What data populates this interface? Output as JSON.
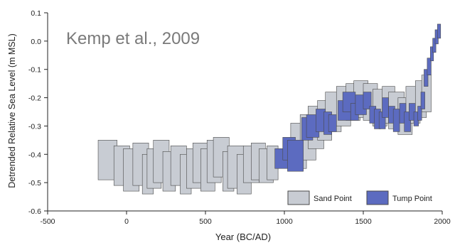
{
  "chart_data": {
    "type": "scatter",
    "title": "",
    "annotation": "Kemp et al., 2009",
    "xlabel": "Year (BC/AD)",
    "ylabel": "Detrended Relative Sea Level (m MSL)",
    "xlim": [
      -500,
      2000
    ],
    "ylim": [
      -0.6,
      0.1
    ],
    "x_ticks": [
      -500,
      0,
      500,
      1000,
      1500,
      2000
    ],
    "y_ticks": [
      0.1,
      0.0,
      -0.1,
      -0.2,
      -0.3,
      -0.4,
      -0.5,
      -0.6
    ],
    "y_tick_labels": [
      "0.1",
      "0.0",
      "-0.1",
      "-0.2",
      "-0.3",
      "-0.4",
      "-0.5",
      "-0.6"
    ],
    "grid": false,
    "legend_position": "bottom-right",
    "colors": {
      "sand": "#c8ccd3",
      "tump": "#5c6bc0",
      "edge": "#4a4a4a"
    },
    "series": [
      {
        "name": "Sand Point",
        "boxes": [
          {
            "x1": -180,
            "x2": -60,
            "y1": -0.35,
            "y2": -0.49
          },
          {
            "x1": -80,
            "x2": 20,
            "y1": -0.37,
            "y2": -0.51
          },
          {
            "x1": -20,
            "x2": 80,
            "y1": -0.38,
            "y2": -0.53
          },
          {
            "x1": 40,
            "x2": 140,
            "y1": -0.36,
            "y2": -0.51
          },
          {
            "x1": 100,
            "x2": 170,
            "y1": -0.4,
            "y2": -0.54
          },
          {
            "x1": 130,
            "x2": 220,
            "y1": -0.38,
            "y2": -0.52
          },
          {
            "x1": 170,
            "x2": 270,
            "y1": -0.35,
            "y2": -0.5
          },
          {
            "x1": 230,
            "x2": 310,
            "y1": -0.39,
            "y2": -0.53
          },
          {
            "x1": 280,
            "x2": 380,
            "y1": -0.37,
            "y2": -0.51
          },
          {
            "x1": 340,
            "x2": 410,
            "y1": -0.4,
            "y2": -0.54
          },
          {
            "x1": 380,
            "x2": 470,
            "y1": -0.38,
            "y2": -0.52
          },
          {
            "x1": 420,
            "x2": 520,
            "y1": -0.36,
            "y2": -0.5
          },
          {
            "x1": 470,
            "x2": 560,
            "y1": -0.38,
            "y2": -0.53
          },
          {
            "x1": 510,
            "x2": 600,
            "y1": -0.35,
            "y2": -0.5
          },
          {
            "x1": 550,
            "x2": 650,
            "y1": -0.34,
            "y2": -0.48
          },
          {
            "x1": 610,
            "x2": 680,
            "y1": -0.39,
            "y2": -0.53
          },
          {
            "x1": 640,
            "x2": 740,
            "y1": -0.37,
            "y2": -0.52
          },
          {
            "x1": 700,
            "x2": 790,
            "y1": -0.4,
            "y2": -0.54
          },
          {
            "x1": 740,
            "x2": 840,
            "y1": -0.37,
            "y2": -0.5
          },
          {
            "x1": 790,
            "x2": 880,
            "y1": -0.36,
            "y2": -0.49
          },
          {
            "x1": 840,
            "x2": 930,
            "y1": -0.38,
            "y2": -0.5
          },
          {
            "x1": 890,
            "x2": 960,
            "y1": -0.37,
            "y2": -0.49
          },
          {
            "x1": 1040,
            "x2": 1140,
            "y1": -0.29,
            "y2": -0.45
          },
          {
            "x1": 1100,
            "x2": 1200,
            "y1": -0.26,
            "y2": -0.42
          },
          {
            "x1": 1150,
            "x2": 1250,
            "y1": -0.23,
            "y2": -0.38
          },
          {
            "x1": 1210,
            "x2": 1300,
            "y1": -0.21,
            "y2": -0.35
          },
          {
            "x1": 1260,
            "x2": 1360,
            "y1": -0.18,
            "y2": -0.32
          },
          {
            "x1": 1330,
            "x2": 1420,
            "y1": -0.16,
            "y2": -0.3
          },
          {
            "x1": 1390,
            "x2": 1480,
            "y1": -0.15,
            "y2": -0.28
          },
          {
            "x1": 1440,
            "x2": 1530,
            "y1": -0.14,
            "y2": -0.27
          },
          {
            "x1": 1500,
            "x2": 1590,
            "y1": -0.15,
            "y2": -0.28
          },
          {
            "x1": 1560,
            "x2": 1650,
            "y1": -0.17,
            "y2": -0.3
          },
          {
            "x1": 1620,
            "x2": 1700,
            "y1": -0.16,
            "y2": -0.29
          },
          {
            "x1": 1660,
            "x2": 1760,
            "y1": -0.18,
            "y2": -0.31
          },
          {
            "x1": 1720,
            "x2": 1810,
            "y1": -0.2,
            "y2": -0.33
          },
          {
            "x1": 1770,
            "x2": 1860,
            "y1": -0.16,
            "y2": -0.29
          },
          {
            "x1": 1830,
            "x2": 1900,
            "y1": -0.14,
            "y2": -0.27
          },
          {
            "x1": 1870,
            "x2": 1930,
            "y1": -0.12,
            "y2": -0.25
          }
        ]
      },
      {
        "name": "Tump Point",
        "boxes": [
          {
            "x1": 940,
            "x2": 1030,
            "y1": -0.38,
            "y2": -0.45
          },
          {
            "x1": 990,
            "x2": 1070,
            "y1": -0.34,
            "y2": -0.42
          },
          {
            "x1": 1020,
            "x2": 1120,
            "y1": -0.35,
            "y2": -0.46
          },
          {
            "x1": 1110,
            "x2": 1180,
            "y1": -0.27,
            "y2": -0.35
          },
          {
            "x1": 1140,
            "x2": 1220,
            "y1": -0.26,
            "y2": -0.34
          },
          {
            "x1": 1200,
            "x2": 1260,
            "y1": -0.24,
            "y2": -0.32
          },
          {
            "x1": 1250,
            "x2": 1300,
            "y1": -0.25,
            "y2": -0.33
          },
          {
            "x1": 1280,
            "x2": 1330,
            "y1": -0.26,
            "y2": -0.32
          },
          {
            "x1": 1340,
            "x2": 1420,
            "y1": -0.21,
            "y2": -0.28
          },
          {
            "x1": 1370,
            "x2": 1450,
            "y1": -0.18,
            "y2": -0.25
          },
          {
            "x1": 1420,
            "x2": 1470,
            "y1": -0.22,
            "y2": -0.28
          },
          {
            "x1": 1450,
            "x2": 1520,
            "y1": -0.19,
            "y2": -0.26
          },
          {
            "x1": 1500,
            "x2": 1550,
            "y1": -0.18,
            "y2": -0.24
          },
          {
            "x1": 1540,
            "x2": 1580,
            "y1": -0.23,
            "y2": -0.29
          },
          {
            "x1": 1570,
            "x2": 1610,
            "y1": -0.24,
            "y2": -0.31
          },
          {
            "x1": 1600,
            "x2": 1640,
            "y1": -0.25,
            "y2": -0.31
          },
          {
            "x1": 1620,
            "x2": 1660,
            "y1": -0.2,
            "y2": -0.27
          },
          {
            "x1": 1660,
            "x2": 1700,
            "y1": -0.23,
            "y2": -0.29
          },
          {
            "x1": 1690,
            "x2": 1730,
            "y1": -0.24,
            "y2": -0.32
          },
          {
            "x1": 1730,
            "x2": 1770,
            "y1": -0.22,
            "y2": -0.29
          },
          {
            "x1": 1760,
            "x2": 1800,
            "y1": -0.25,
            "y2": -0.32
          },
          {
            "x1": 1790,
            "x2": 1830,
            "y1": -0.22,
            "y2": -0.28
          },
          {
            "x1": 1820,
            "x2": 1850,
            "y1": -0.25,
            "y2": -0.3
          },
          {
            "x1": 1845,
            "x2": 1870,
            "y1": -0.23,
            "y2": -0.28
          },
          {
            "x1": 1865,
            "x2": 1890,
            "y1": -0.18,
            "y2": -0.24
          },
          {
            "x1": 1885,
            "x2": 1910,
            "y1": -0.1,
            "y2": -0.16
          },
          {
            "x1": 1905,
            "x2": 1930,
            "y1": -0.06,
            "y2": -0.12
          },
          {
            "x1": 1925,
            "x2": 1945,
            "y1": -0.02,
            "y2": -0.07
          },
          {
            "x1": 1940,
            "x2": 1960,
            "y1": 0.01,
            "y2": -0.04
          },
          {
            "x1": 1955,
            "x2": 1975,
            "y1": 0.04,
            "y2": -0.01
          },
          {
            "x1": 1970,
            "x2": 1990,
            "y1": 0.06,
            "y2": 0.01
          }
        ]
      }
    ]
  }
}
